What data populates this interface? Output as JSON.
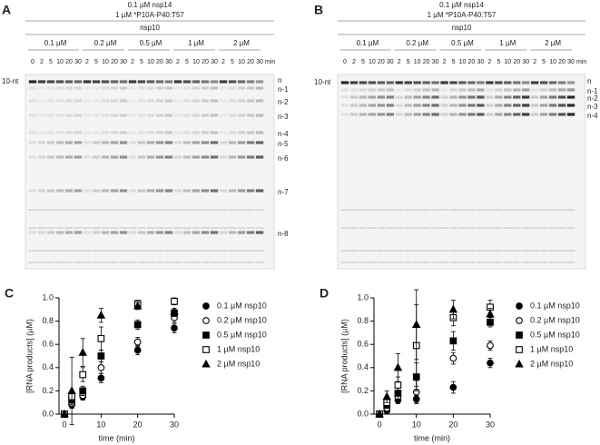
{
  "gels": [
    {
      "panel": "A",
      "heading": [
        "0.1 µM nsp14",
        "1 µM *P10A-P40:T57"
      ],
      "factor": "nsp10",
      "unit": "min",
      "marker": "10-nt",
      "groups": [
        {
          "label": "0.1 µM",
          "times": [
            0,
            2,
            5,
            10,
            20,
            30
          ]
        },
        {
          "label": "0.2 µM",
          "times": [
            2,
            5,
            10,
            20,
            30
          ]
        },
        {
          "label": "0.5 µM",
          "times": [
            2,
            5,
            10,
            20,
            30
          ]
        },
        {
          "label": "1 µM",
          "times": [
            2,
            5,
            10,
            20,
            30
          ]
        },
        {
          "label": "2 µM",
          "times": [
            2,
            5,
            10,
            20,
            30
          ]
        }
      ],
      "bands": [
        "n",
        "n-1",
        "n-2",
        "n-3",
        "n-4",
        "n-5",
        "n-6",
        "n-7",
        "n-8"
      ]
    },
    {
      "panel": "B",
      "heading": [
        "0.1 µM nsp14",
        "1 µM *P10A-P40:T57"
      ],
      "factor": "nsp10",
      "unit": "min",
      "marker": "10-nt",
      "groups": [
        {
          "label": "0.1 µM",
          "times": [
            0,
            2,
            5,
            10,
            20,
            30
          ]
        },
        {
          "label": "0.2 µM",
          "times": [
            2,
            5,
            10,
            20,
            30
          ]
        },
        {
          "label": "0.5 µM",
          "times": [
            2,
            5,
            10,
            20,
            30
          ]
        },
        {
          "label": "1 µM",
          "times": [
            2,
            5,
            10,
            20,
            30
          ]
        },
        {
          "label": "2 µM",
          "times": [
            2,
            5,
            10,
            20,
            30
          ]
        }
      ],
      "bands": [
        "n",
        "n-1",
        "n-2",
        "n-3",
        "n-4"
      ]
    }
  ],
  "chart_data": [
    {
      "type": "scatter",
      "panel": "C",
      "x_label": "time (min)",
      "y_label": "[RNA products] (µM)",
      "x": [
        0,
        2,
        5,
        10,
        20,
        30
      ],
      "xlim": [
        -1.5,
        30
      ],
      "xticks": [
        0,
        10,
        20,
        30
      ],
      "ylim": [
        0,
        1
      ],
      "yticks": [
        {
          "value": 0,
          "label": "0.0"
        },
        0.2,
        0.4,
        0.6,
        0.8,
        {
          "value": 1,
          "label": "1.0"
        }
      ],
      "series": [
        {
          "name": "0.1 µM nsp10",
          "marker": "circle",
          "filled": true,
          "color": "#000000",
          "values": [
            0,
            0.08,
            0.15,
            0.31,
            0.55,
            0.74
          ],
          "errors": [
            0,
            0.03,
            0.03,
            0.04,
            0.04,
            0.04
          ]
        },
        {
          "name": "0.2 µM nsp10",
          "marker": "circle",
          "filled": false,
          "color": "#000000",
          "values": [
            0,
            0.09,
            0.16,
            0.4,
            0.62,
            0.83
          ],
          "errors": [
            0,
            0.03,
            0.03,
            0.05,
            0.04,
            0.04
          ]
        },
        {
          "name": "0.5 µM nsp10",
          "marker": "square",
          "filled": true,
          "color": "#000000",
          "values": [
            0,
            0.12,
            0.2,
            0.5,
            0.77,
            0.87
          ],
          "errors": [
            0,
            0.04,
            0.04,
            0.05,
            0.04,
            0.03
          ]
        },
        {
          "name": "1 µM nsp10",
          "marker": "square",
          "filled": false,
          "color": "#000000",
          "values": [
            0,
            0.15,
            0.34,
            0.65,
            0.95,
            0.97
          ],
          "errors": [
            0,
            0.05,
            0.06,
            0.1,
            0.03,
            0.03
          ]
        },
        {
          "name": "2 µM nsp10",
          "marker": "triangle",
          "filled": true,
          "color": "#000000",
          "values": [
            0,
            0.2,
            0.53,
            0.85,
            0.93,
            0.88
          ],
          "errors": [
            0,
            0.29,
            0.12,
            0.06,
            0.03,
            0.03
          ]
        }
      ]
    },
    {
      "type": "scatter",
      "panel": "D",
      "x_label": "time (min)",
      "y_label": "[RNA products] (µM)",
      "x": [
        0,
        2,
        5,
        10,
        20,
        30
      ],
      "xlim": [
        -1.5,
        30
      ],
      "xticks": [
        0,
        10,
        20,
        30
      ],
      "ylim": [
        0,
        1
      ],
      "yticks": [
        {
          "value": 0,
          "label": "0.0"
        },
        0.2,
        0.4,
        0.6,
        0.8,
        {
          "value": 1,
          "label": "1.0"
        }
      ],
      "series": [
        {
          "name": "0.1 µM nsp10",
          "marker": "circle",
          "filled": true,
          "color": "#000000",
          "values": [
            0,
            0.03,
            0.12,
            0.13,
            0.23,
            0.44
          ],
          "errors": [
            0,
            0.02,
            0.03,
            0.03,
            0.05,
            0.04
          ]
        },
        {
          "name": "0.2 µM nsp10",
          "marker": "circle",
          "filled": false,
          "color": "#000000",
          "values": [
            0,
            0.05,
            0.15,
            0.19,
            0.48,
            0.59
          ],
          "errors": [
            0,
            0.02,
            0.04,
            0.1,
            0.05,
            0.04
          ]
        },
        {
          "name": "0.5 µM nsp10",
          "marker": "square",
          "filled": true,
          "color": "#000000",
          "values": [
            0,
            0.08,
            0.18,
            0.32,
            0.63,
            0.79
          ],
          "errors": [
            0,
            0.03,
            0.05,
            0.12,
            0.08,
            0.04
          ]
        },
        {
          "name": "1 µM nsp10",
          "marker": "square",
          "filled": false,
          "color": "#000000",
          "values": [
            0,
            0.1,
            0.25,
            0.59,
            0.83,
            0.92
          ],
          "errors": [
            0,
            0.04,
            0.07,
            0.35,
            0.07,
            0.06
          ]
        },
        {
          "name": "2 µM nsp10",
          "marker": "triangle",
          "filled": true,
          "color": "#000000",
          "values": [
            0,
            0.15,
            0.4,
            0.77,
            0.9,
            0.86
          ],
          "errors": [
            0,
            0.05,
            0.12,
            0.3,
            0.08,
            0.05
          ]
        }
      ]
    }
  ]
}
